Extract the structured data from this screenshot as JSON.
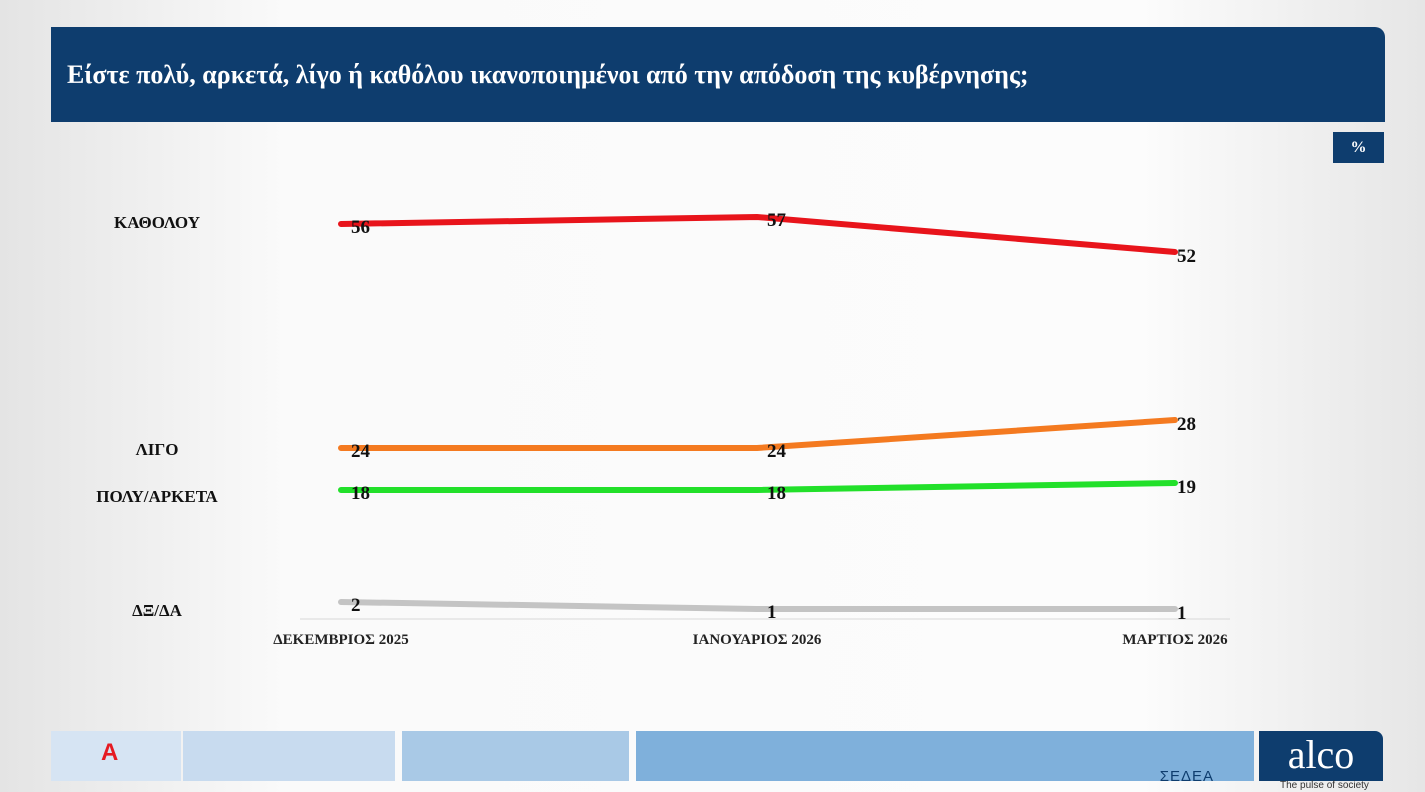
{
  "header": {
    "title": "Είστε πολύ, αρκετά, λίγο ή καθόλου ικανοποιημένοι από την απόδοση της κυβέρνησης;",
    "unit": "%"
  },
  "chart_data": {
    "type": "line",
    "title": "Είστε πολύ, αρκετά, λίγο ή καθόλου ικανοποιημένοι από την απόδοση της κυβέρνησης;",
    "categories": [
      "ΔΕΚΕΜΒΡΙΟΣ 2025",
      "ΙΑΝΟΥΑΡΙΟΣ 2026",
      "ΜΑΡΤΙΟΣ 2026"
    ],
    "ylim": [
      0,
      60
    ],
    "grid": false,
    "legend": "left",
    "series": [
      {
        "name": "ΚΑΘΟΛΟΥ",
        "color": "#e8141b",
        "values": [
          56,
          57,
          52
        ]
      },
      {
        "name": "ΛΙΓΟ",
        "color": "#f47a20",
        "values": [
          24,
          24,
          28
        ]
      },
      {
        "name": "ΠΟΛΥ/ΑΡΚΕΤΑ",
        "color": "#22e02a",
        "values": [
          18,
          18,
          19
        ]
      },
      {
        "name": "ΔΞ/ΔΑ",
        "color": "#c4c4c4",
        "values": [
          2,
          1,
          1
        ]
      }
    ]
  },
  "footer": {
    "sedea": "ΣΕΔΕΑ",
    "alco": "alco",
    "alco_tagline": "The pulse of society",
    "alpha": "Α"
  }
}
